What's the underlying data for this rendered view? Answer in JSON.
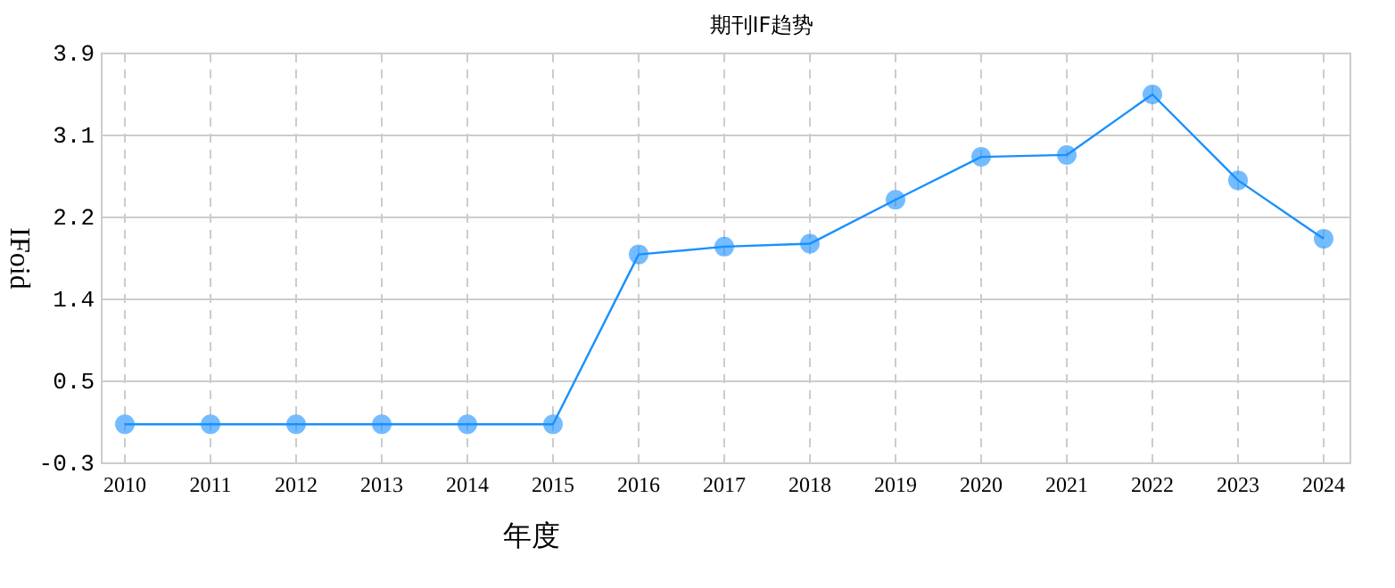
{
  "chart_data": {
    "type": "line",
    "title": "期刊IF趋势",
    "xlabel": "年度",
    "ylabel": "IFoid",
    "categories": [
      "2010",
      "2011",
      "2012",
      "2013",
      "2014",
      "2015",
      "2016",
      "2017",
      "2018",
      "2019",
      "2020",
      "2021",
      "2022",
      "2023",
      "2024"
    ],
    "series": [
      {
        "color": "#1890ff",
        "values": [
          0.1,
          0.1,
          0.1,
          0.1,
          0.1,
          0.1,
          1.84,
          1.92,
          1.95,
          2.4,
          2.84,
          2.86,
          3.48,
          2.6,
          2.0
        ]
      }
    ],
    "ylim": [
      -0.3,
      3.9
    ],
    "yticks": [
      -0.3,
      {
        "value": 0.54,
        "label": "0.5"
      },
      {
        "value": 1.38,
        "label": "1.4"
      },
      {
        "value": 2.22,
        "label": "2.2"
      },
      {
        "value": 3.06,
        "label": "3.1"
      },
      3.9
    ],
    "grid": true,
    "marker": "circle",
    "line_style": "solid"
  }
}
